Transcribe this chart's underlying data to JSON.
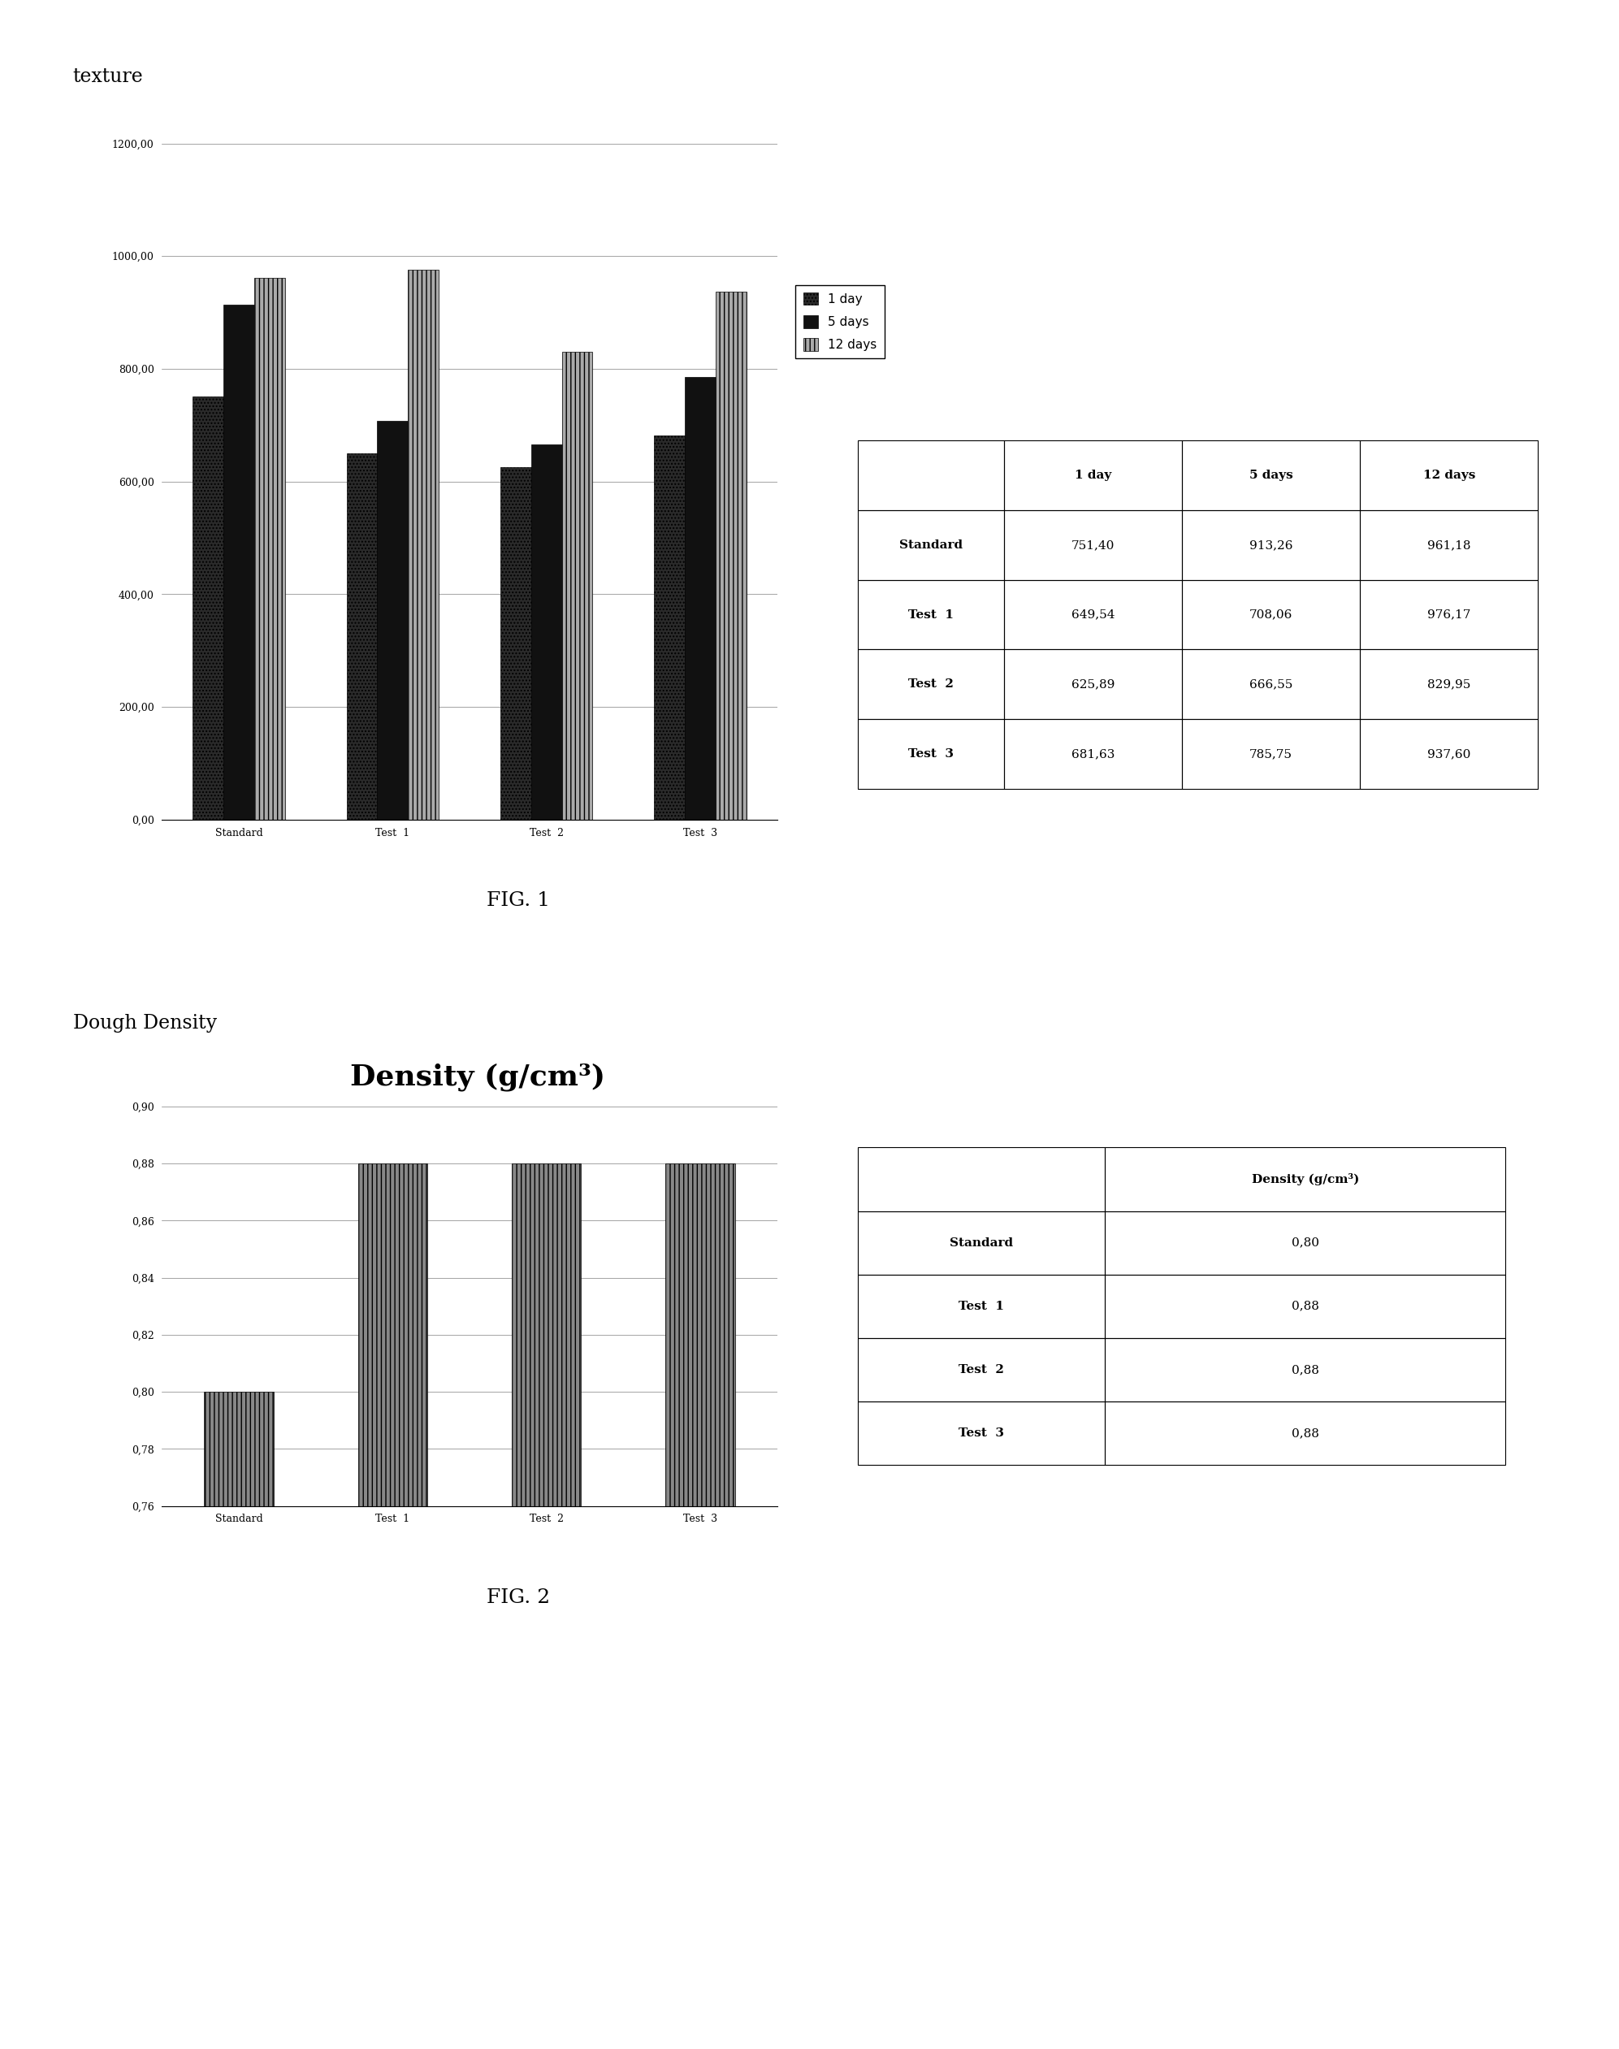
{
  "fig1": {
    "title_above": "texture",
    "categories": [
      "Standard",
      "Test  1",
      "Test  2",
      "Test  3"
    ],
    "series_order": [
      "1 day",
      "5 days",
      "12 days"
    ],
    "series": {
      "1 day": [
        751.4,
        649.54,
        625.89,
        681.63
      ],
      "5 days": [
        913.26,
        708.06,
        666.55,
        785.75
      ],
      "12 days": [
        961.18,
        976.17,
        829.95,
        937.6
      ]
    },
    "colors": {
      "1 day": "#2a2a2a",
      "5 days": "#111111",
      "12 days": "#aaaaaa"
    },
    "hatches": {
      "1 day": "....",
      "5 days": "",
      "12 days": "|||"
    },
    "ylim": [
      0,
      1200
    ],
    "yticks": [
      0,
      200,
      400,
      600,
      800,
      1000,
      1200
    ],
    "ytick_labels": [
      "0,00",
      "200,00",
      "400,00",
      "600,00",
      "800,00",
      "1000,00",
      "1200,00"
    ],
    "fig_label": "FIG. 1",
    "table_header": [
      "",
      "1 day",
      "5 days",
      "12 days"
    ],
    "table_rows": [
      [
        "Standard",
        "751,40",
        "913,26",
        "961,18"
      ],
      [
        "Test  1",
        "649,54",
        "708,06",
        "976,17"
      ],
      [
        "Test  2",
        "625,89",
        "666,55",
        "829,95"
      ],
      [
        "Test  3",
        "681,63",
        "785,75",
        "937,60"
      ]
    ]
  },
  "fig2": {
    "title_above": "Dough Density",
    "chart_title": "Density (g/cm³)",
    "categories": [
      "Standard",
      "Test  1",
      "Test  2",
      "Test  3"
    ],
    "values": [
      0.8,
      0.88,
      0.88,
      0.88
    ],
    "bar_color": "#888888",
    "bar_hatch": "|||",
    "ylim": [
      0.76,
      0.9
    ],
    "yticks": [
      0.76,
      0.78,
      0.8,
      0.82,
      0.84,
      0.86,
      0.88,
      0.9
    ],
    "ytick_labels": [
      "0,76",
      "0,78",
      "0,80",
      "0,82",
      "0,84",
      "0,86",
      "0,88",
      "0,90"
    ],
    "fig_label": "FIG. 2",
    "table_header": [
      "",
      "Density (g/cm³)"
    ],
    "table_rows": [
      [
        "Standard",
        "0,80"
      ],
      [
        "Test  1",
        "0,88"
      ],
      [
        "Test  2",
        "0,88"
      ],
      [
        "Test  3",
        "0,88"
      ]
    ]
  }
}
